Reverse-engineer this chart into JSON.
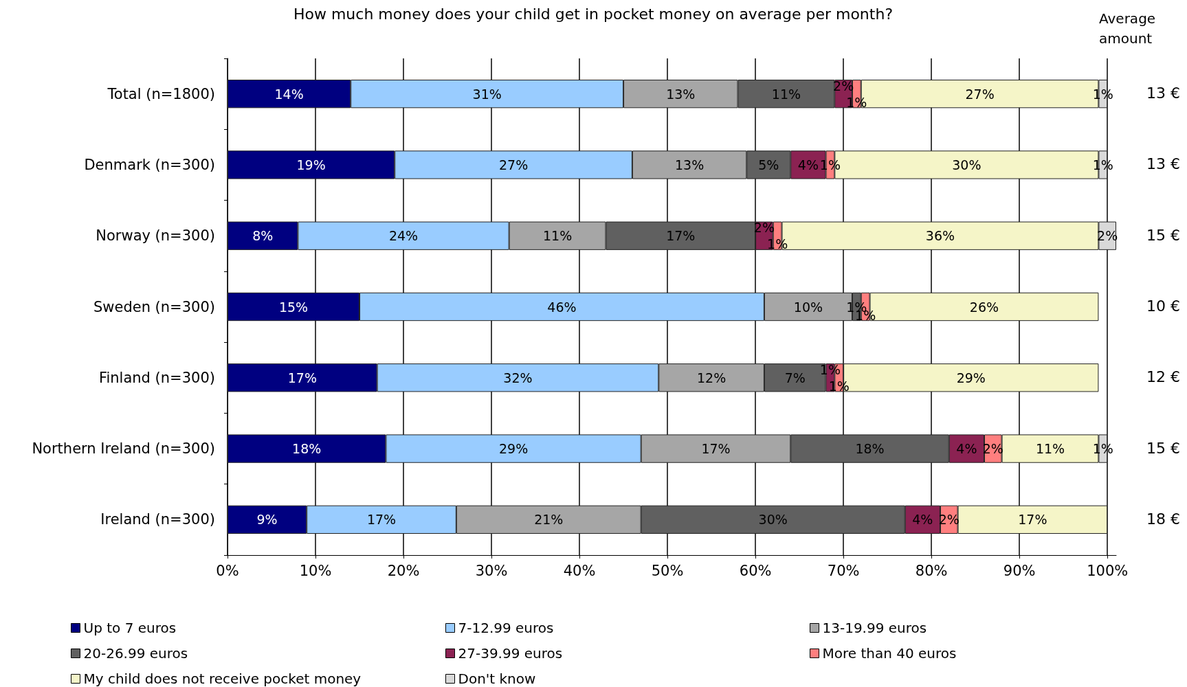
{
  "chart_data": {
    "type": "bar",
    "orientation": "horizontal",
    "stacked": true,
    "title": "How much money does your child get in pocket money on average per month?",
    "categories": [
      "Total (n=1800)",
      "Denmark (n=300)",
      "Norway (n=300)",
      "Sweden (n=300)",
      "Finland (n=300)",
      "Northern Ireland (n=300)",
      "Ireland (n=300)"
    ],
    "series": [
      {
        "name": "Up to 7 euros",
        "color": "#000080",
        "values": [
          14,
          19,
          8,
          15,
          17,
          18,
          9
        ],
        "value_labels": [
          "14%",
          "19%",
          "8%",
          "15%",
          "17%",
          "18%",
          "9%"
        ]
      },
      {
        "name": "7-12.99 euros",
        "color": "#99ccff",
        "values": [
          31,
          27,
          24,
          46,
          32,
          29,
          17
        ],
        "value_labels": [
          "31%",
          "27%",
          "24%",
          "46%",
          "32%",
          "29%",
          "17%"
        ]
      },
      {
        "name": "13-19.99 euros",
        "color": "#a6a6a6",
        "values": [
          13,
          13,
          11,
          10,
          12,
          17,
          21
        ],
        "value_labels": [
          "13%",
          "13%",
          "11%",
          "10%",
          "12%",
          "17%",
          "21%"
        ]
      },
      {
        "name": "20-26.99 euros",
        "color": "#606060",
        "values": [
          11,
          5,
          17,
          1,
          7,
          18,
          30
        ],
        "value_labels": [
          "11%",
          "5%",
          "17%",
          "1%",
          "7%",
          "18%",
          "30%"
        ]
      },
      {
        "name": "27-39.99 euros",
        "color": "#8b2252",
        "values": [
          2,
          4,
          2,
          null,
          1,
          4,
          4
        ],
        "value_labels": [
          "2%",
          "4%",
          "2%",
          null,
          "1%",
          "4%",
          "4%"
        ]
      },
      {
        "name": "More than 40 euros",
        "color": "#ff7f7f",
        "values": [
          1,
          1,
          1,
          1,
          1,
          2,
          2
        ],
        "value_labels": [
          "1%",
          "1%",
          "1%",
          "1%",
          "1%",
          "2%",
          "2%"
        ]
      },
      {
        "name": "My child does not receive pocket money",
        "color": "#f5f5c8",
        "values": [
          27,
          30,
          36,
          26,
          29,
          11,
          17
        ],
        "value_labels": [
          "27%",
          "30%",
          "36%",
          "26%",
          "29%",
          "11%",
          "17%"
        ]
      },
      {
        "name": "Don't know",
        "color": "#d9d9d9",
        "values": [
          1,
          1,
          2,
          null,
          null,
          1,
          null
        ],
        "value_labels": [
          "1%",
          "1%",
          "2%",
          null,
          null,
          "1%",
          null
        ]
      }
    ],
    "xlim": [
      0,
      101
    ],
    "xticks": [
      {
        "value": 0,
        "label": "0%"
      },
      {
        "value": 10,
        "label": "10%"
      },
      {
        "value": 20,
        "label": "20%"
      },
      {
        "value": 30,
        "label": "30%"
      },
      {
        "value": 40,
        "label": "40%"
      },
      {
        "value": 50,
        "label": "50%"
      },
      {
        "value": 60,
        "label": "60%"
      },
      {
        "value": 70,
        "label": "70%"
      },
      {
        "value": 80,
        "label": "80%"
      },
      {
        "value": 90,
        "label": "90%"
      },
      {
        "value": 100,
        "label": "100%"
      }
    ],
    "grid": "x",
    "legend": "bottom",
    "annotations": [
      "Average amount",
      "13 €",
      "13 €",
      "15 €",
      "10 €",
      "12 €",
      "15 €",
      "18 €"
    ]
  }
}
